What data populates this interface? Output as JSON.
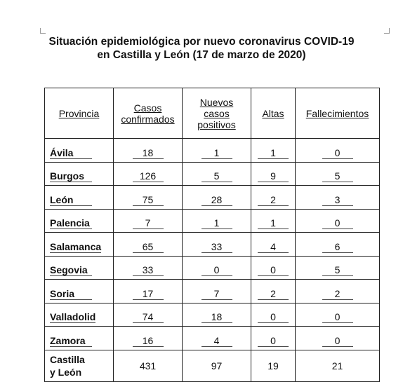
{
  "title": {
    "line1": "Situación epidemiológica por nuevo coronavirus COVID-19",
    "line2": "en Castilla y León (17 de marzo de 2020)"
  },
  "table": {
    "headers": {
      "provincia": "Provincia",
      "confirmados": [
        "Casos",
        "confirmados"
      ],
      "nuevos": [
        "Nuevos",
        "casos",
        "positivos"
      ],
      "altas": "Altas",
      "fallecimientos": "Fallecimientos"
    },
    "rows": [
      {
        "provincia": "Ávila",
        "confirmados": "18",
        "nuevos": "1",
        "altas": "1",
        "fallecimientos": "0"
      },
      {
        "provincia": "Burgos",
        "confirmados": "126",
        "nuevos": "5",
        "altas": "9",
        "fallecimientos": "5"
      },
      {
        "provincia": "León",
        "confirmados": "75",
        "nuevos": "28",
        "altas": "2",
        "fallecimientos": "3"
      },
      {
        "provincia": "Palencia",
        "confirmados": "7",
        "nuevos": "1",
        "altas": "1",
        "fallecimientos": "0"
      },
      {
        "provincia": "Salamanca",
        "confirmados": "65",
        "nuevos": "33",
        "altas": "4",
        "fallecimientos": "6"
      },
      {
        "provincia": "Segovia",
        "confirmados": "33",
        "nuevos": "0",
        "altas": "0",
        "fallecimientos": "5"
      },
      {
        "provincia": "Soria",
        "confirmados": "17",
        "nuevos": "7",
        "altas": "2",
        "fallecimientos": "2"
      },
      {
        "provincia": "Valladolid",
        "confirmados": "74",
        "nuevos": "18",
        "altas": "0",
        "fallecimientos": "0"
      },
      {
        "provincia": "Zamora",
        "confirmados": "16",
        "nuevos": "4",
        "altas": "0",
        "fallecimientos": "0"
      }
    ],
    "total": {
      "provincia": [
        "Castilla",
        "y León"
      ],
      "confirmados": "431",
      "nuevos": "97",
      "altas": "19",
      "fallecimientos": "21"
    }
  }
}
